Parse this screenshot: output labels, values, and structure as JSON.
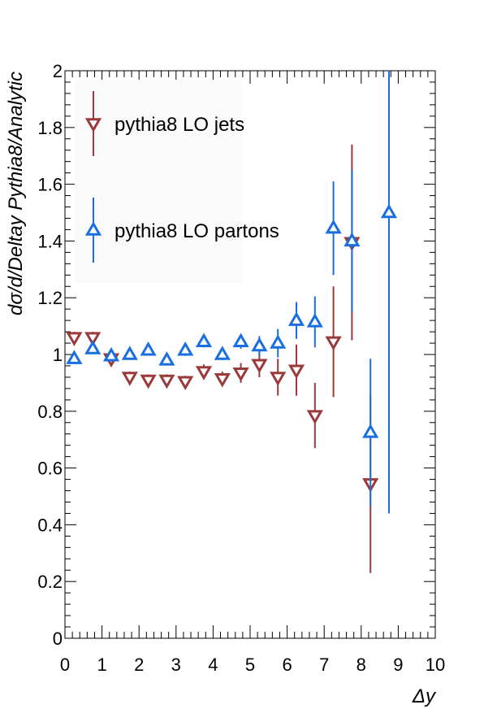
{
  "chart_data": {
    "type": "scatter",
    "title": "",
    "xlabel": "Δy",
    "ylabel": "dσ/d/Deltay   Pythia8/Analytic",
    "xlim": [
      0,
      10
    ],
    "ylim": [
      0,
      2
    ],
    "x_ticks": [
      "0",
      "1",
      "2",
      "3",
      "4",
      "5",
      "6",
      "7",
      "8",
      "9",
      "10"
    ],
    "y_ticks": [
      "0",
      "0.2",
      "0.4",
      "0.6",
      "0.8",
      "1",
      "1.2",
      "1.4",
      "1.6",
      "1.8",
      "2"
    ],
    "legend_position": "top-left",
    "series": [
      {
        "name": "pythia8 LO jets",
        "color": "#9a3a3a",
        "marker": "triangle-down-open",
        "points": [
          {
            "x": 0.25,
            "y": 1.06,
            "err": 0.02
          },
          {
            "x": 0.75,
            "y": 1.06,
            "err": 0.02
          },
          {
            "x": 1.25,
            "y": 0.985,
            "err": 0.02
          },
          {
            "x": 1.75,
            "y": 0.92,
            "err": 0.02
          },
          {
            "x": 2.25,
            "y": 0.91,
            "err": 0.02
          },
          {
            "x": 2.75,
            "y": 0.91,
            "err": 0.02
          },
          {
            "x": 3.25,
            "y": 0.905,
            "err": 0.02
          },
          {
            "x": 3.75,
            "y": 0.94,
            "err": 0.025
          },
          {
            "x": 4.25,
            "y": 0.915,
            "err": 0.025
          },
          {
            "x": 4.75,
            "y": 0.935,
            "err": 0.035
          },
          {
            "x": 5.25,
            "y": 0.965,
            "err": 0.045
          },
          {
            "x": 5.75,
            "y": 0.92,
            "err": 0.065
          },
          {
            "x": 6.25,
            "y": 0.945,
            "err": 0.09
          },
          {
            "x": 6.75,
            "y": 0.785,
            "err": 0.115
          },
          {
            "x": 7.25,
            "y": 1.045,
            "err": 0.195
          },
          {
            "x": 7.75,
            "y": 1.395,
            "err": 0.345
          },
          {
            "x": 8.25,
            "y": 0.545,
            "err": 0.315
          }
        ]
      },
      {
        "name": "pythia8 LO partons",
        "color": "#1a6fe0",
        "marker": "triangle-up-open",
        "points": [
          {
            "x": 0.25,
            "y": 0.985,
            "err": 0.015
          },
          {
            "x": 0.75,
            "y": 1.02,
            "err": 0.015
          },
          {
            "x": 1.25,
            "y": 0.995,
            "err": 0.015
          },
          {
            "x": 1.75,
            "y": 1.0,
            "err": 0.015
          },
          {
            "x": 2.25,
            "y": 1.015,
            "err": 0.015
          },
          {
            "x": 2.75,
            "y": 0.98,
            "err": 0.015
          },
          {
            "x": 3.25,
            "y": 1.015,
            "err": 0.02
          },
          {
            "x": 3.75,
            "y": 1.045,
            "err": 0.02
          },
          {
            "x": 4.25,
            "y": 1.0,
            "err": 0.02
          },
          {
            "x": 4.75,
            "y": 1.045,
            "err": 0.025
          },
          {
            "x": 5.25,
            "y": 1.03,
            "err": 0.035
          },
          {
            "x": 5.75,
            "y": 1.04,
            "err": 0.05
          },
          {
            "x": 6.25,
            "y": 1.12,
            "err": 0.065
          },
          {
            "x": 6.75,
            "y": 1.115,
            "err": 0.09
          },
          {
            "x": 7.25,
            "y": 1.445,
            "err": 0.165
          },
          {
            "x": 7.75,
            "y": 1.4,
            "err": 0.25
          },
          {
            "x": 8.25,
            "y": 0.725,
            "err": 0.26
          },
          {
            "x": 8.75,
            "y": 1.5,
            "err": 1.06
          }
        ]
      }
    ]
  }
}
